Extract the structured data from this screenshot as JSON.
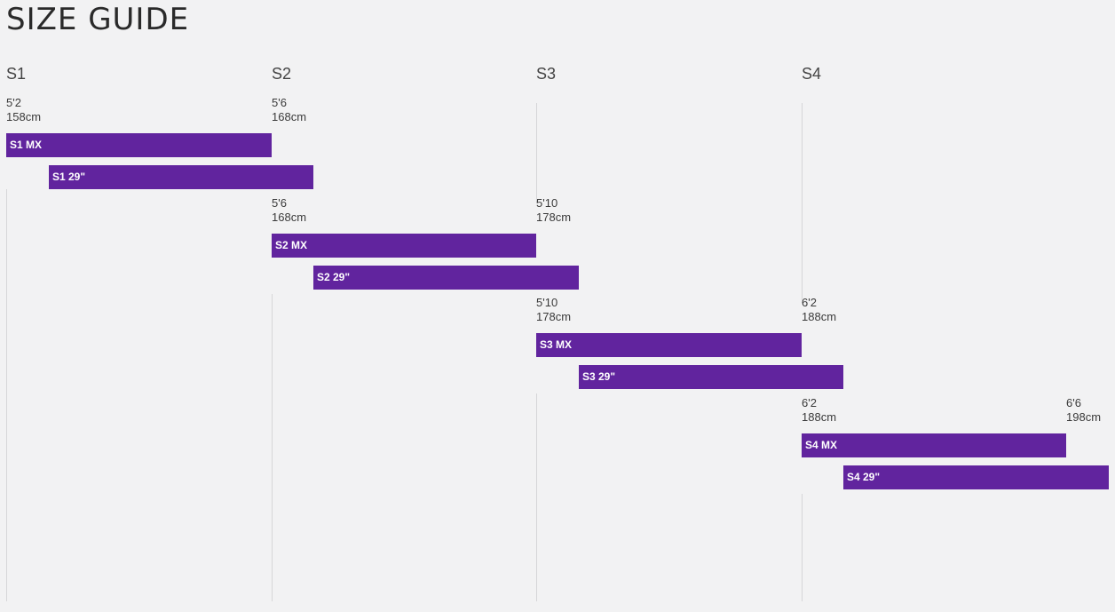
{
  "title": "SIZE GUIDE",
  "colors": {
    "bar": "#61249e",
    "background": "#f2f2f3"
  },
  "chart_data": {
    "type": "bar",
    "orientation": "horizontal-range",
    "x_unit": "cm",
    "xlim": [
      158,
      198
    ],
    "size_columns": [
      {
        "label": "S1",
        "start_cm": 158
      },
      {
        "label": "S2",
        "start_cm": 168
      },
      {
        "label": "S3",
        "start_cm": 178
      },
      {
        "label": "S4",
        "start_cm": 188
      }
    ],
    "groups": [
      {
        "size": "S1",
        "start": {
          "ft": "5'2",
          "cm": "158cm"
        },
        "end": {
          "ft": "5'6",
          "cm": "168cm"
        },
        "bars": [
          {
            "label": "S1 MX",
            "from_cm": 158,
            "to_cm": 168
          },
          {
            "label": "S1 29\"",
            "from_cm": 159.6,
            "to_cm": 169.6
          }
        ]
      },
      {
        "size": "S2",
        "start": {
          "ft": "5'6",
          "cm": "168cm"
        },
        "end": {
          "ft": "5'10",
          "cm": "178cm"
        },
        "bars": [
          {
            "label": "S2 MX",
            "from_cm": 168,
            "to_cm": 178
          },
          {
            "label": "S2 29\"",
            "from_cm": 169.6,
            "to_cm": 179.6
          }
        ]
      },
      {
        "size": "S3",
        "start": {
          "ft": "5'10",
          "cm": "178cm"
        },
        "end": {
          "ft": "6'2",
          "cm": "188cm"
        },
        "bars": [
          {
            "label": "S3 MX",
            "from_cm": 178,
            "to_cm": 188
          },
          {
            "label": "S3 29\"",
            "from_cm": 179.6,
            "to_cm": 189.6
          }
        ]
      },
      {
        "size": "S4",
        "start": {
          "ft": "6'2",
          "cm": "188cm"
        },
        "end": {
          "ft": "6'6",
          "cm": "198cm"
        },
        "bars": [
          {
            "label": "S4 MX",
            "from_cm": 188,
            "to_cm": 198
          },
          {
            "label": "S4 29\"",
            "from_cm": 189.6,
            "to_cm": 199.6
          }
        ]
      }
    ]
  }
}
